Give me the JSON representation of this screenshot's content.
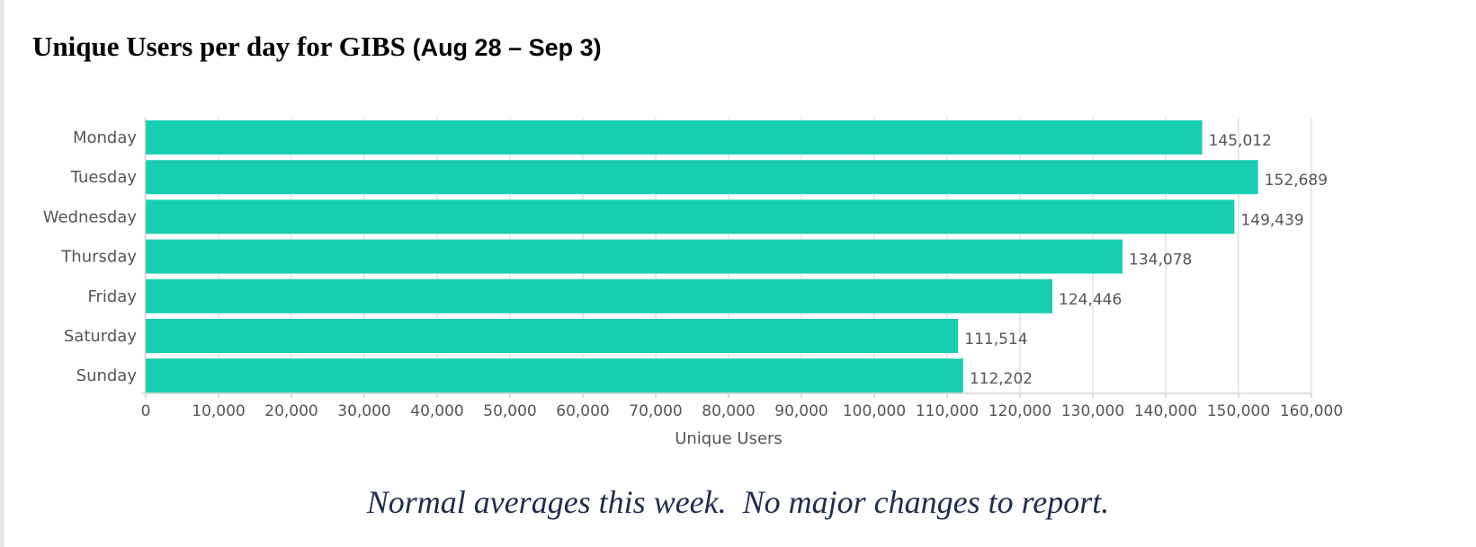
{
  "page": {
    "title_main": "Unique Users per day for GIBS ",
    "title_dates": "(Aug 28 – Sep 3)",
    "caption": "Normal averages this week.  No major changes to report."
  },
  "chart_data": {
    "type": "bar",
    "orientation": "horizontal",
    "categories": [
      "Monday",
      "Tuesday",
      "Wednesday",
      "Thursday",
      "Friday",
      "Saturday",
      "Sunday"
    ],
    "values": [
      145012,
      152689,
      149439,
      134078,
      124446,
      111514,
      112202
    ],
    "value_labels": [
      "145,012",
      "152,689",
      "149,439",
      "134,078",
      "124,446",
      "111,514",
      "112,202"
    ],
    "xlabel": "Unique Users",
    "ylabel": "",
    "xlim": [
      0,
      160000
    ],
    "xticks": [
      0,
      10000,
      20000,
      30000,
      40000,
      50000,
      60000,
      70000,
      80000,
      90000,
      100000,
      110000,
      120000,
      130000,
      140000,
      150000,
      160000
    ],
    "xtick_labels": [
      "0",
      "10,000",
      "20,000",
      "30,000",
      "40,000",
      "50,000",
      "60,000",
      "70,000",
      "80,000",
      "90,000",
      "100,000",
      "110,000",
      "120,000",
      "130,000",
      "140,000",
      "150,000",
      "160,000"
    ],
    "grid": true,
    "legend": "none",
    "bar_color": "#18cfb0"
  }
}
